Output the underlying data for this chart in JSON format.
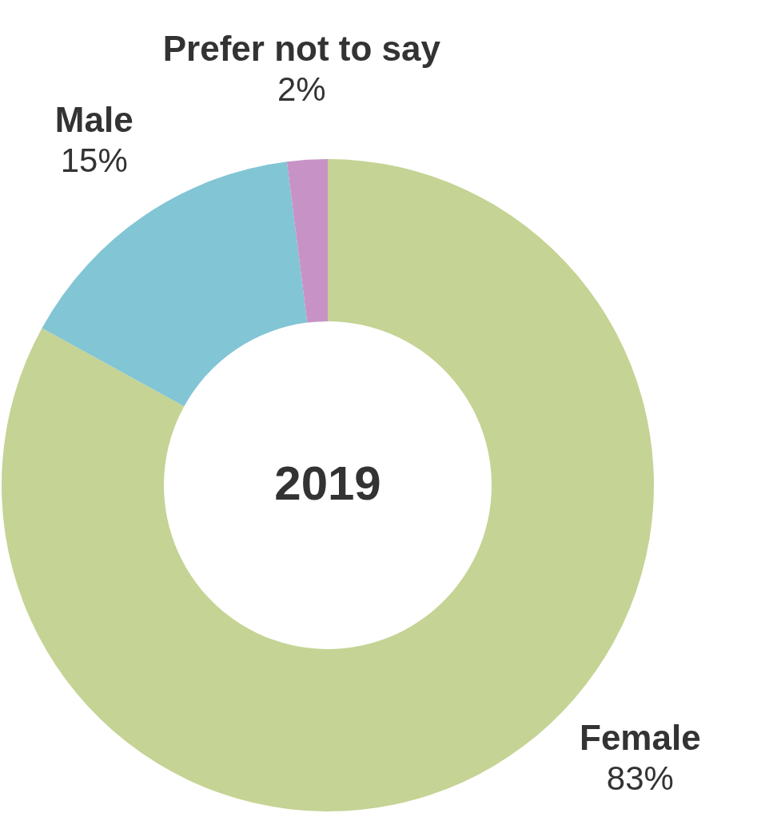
{
  "chart_data": {
    "type": "donut",
    "title": "2019",
    "categories": [
      "Female",
      "Male",
      "Prefer not to say"
    ],
    "values": [
      83,
      15,
      2
    ],
    "colors": [
      "#c5d394",
      "#82c5d5",
      "#c793c6"
    ],
    "value_labels": [
      "83%",
      "15%",
      "2%"
    ]
  }
}
